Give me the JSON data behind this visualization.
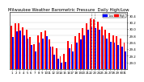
{
  "title": "Milwaukee Weather Barometric Pressure  Daily High/Low",
  "days": [
    1,
    2,
    3,
    4,
    5,
    6,
    7,
    8,
    9,
    10,
    11,
    12,
    13,
    14,
    15,
    16,
    17,
    18,
    19,
    20,
    21,
    22,
    23,
    24,
    25,
    26,
    27,
    28,
    29,
    30,
    31
  ],
  "high": [
    30.1,
    30.18,
    30.18,
    30.05,
    29.98,
    29.75,
    29.55,
    29.8,
    29.9,
    29.95,
    29.7,
    29.48,
    29.42,
    29.18,
    29.25,
    29.65,
    29.55,
    29.78,
    29.88,
    30.02,
    30.18,
    30.32,
    30.28,
    30.22,
    30.08,
    29.98,
    29.88,
    29.82,
    29.78,
    29.72,
    29.58
  ],
  "low": [
    29.75,
    29.92,
    29.96,
    29.82,
    29.72,
    29.52,
    29.32,
    29.58,
    29.72,
    29.78,
    29.48,
    29.22,
    29.12,
    28.98,
    29.02,
    29.42,
    29.32,
    29.58,
    29.68,
    29.82,
    29.98,
    30.08,
    30.02,
    29.98,
    29.82,
    29.72,
    29.62,
    29.58,
    29.52,
    29.48,
    29.32
  ],
  "high_color": "#ff0000",
  "low_color": "#0000ff",
  "ylim_low": 28.8,
  "ylim_high": 30.5,
  "yticks": [
    29.0,
    29.2,
    29.4,
    29.6,
    29.8,
    30.0,
    30.2,
    30.4
  ],
  "ytick_labels": [
    "29.0",
    "29.2",
    "29.4",
    "29.6",
    "29.8",
    "30.0",
    "30.2",
    "30.4"
  ],
  "background_color": "#ffffff",
  "plot_bg": "#ffffff",
  "legend_high": "High",
  "legend_low": "Low",
  "vline1": 21,
  "vline2": 22,
  "title_fontsize": 3.8,
  "tick_fontsize": 2.8,
  "bar_width": 0.4
}
